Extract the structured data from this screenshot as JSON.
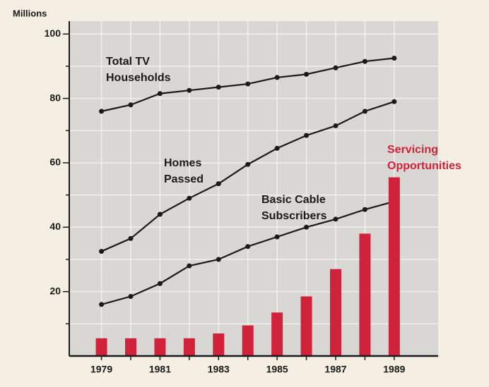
{
  "chart_data": {
    "type": "line-bar",
    "y_axis_label": "Millions",
    "x": [
      1979,
      1980,
      1981,
      1982,
      1983,
      1984,
      1985,
      1986,
      1987,
      1988,
      1989
    ],
    "xlim": [
      1977.9,
      1990.5
    ],
    "xticks": [
      1979,
      1981,
      1983,
      1985,
      1987,
      1989
    ],
    "ylim": [
      0,
      104
    ],
    "yticks": [
      20,
      40,
      60,
      80,
      100
    ],
    "minor_yticks": [
      10,
      30,
      50,
      70,
      90
    ],
    "grid": true,
    "series": [
      {
        "name": [
          "Total TV",
          "Households"
        ],
        "kind": "line",
        "color": "#1a1a1a",
        "values": [
          76,
          78,
          81.5,
          82.5,
          83.5,
          84.5,
          86.5,
          87.5,
          89.5,
          91.5,
          92.5
        ]
      },
      {
        "name": [
          "Homes",
          "Passed"
        ],
        "kind": "line",
        "color": "#1a1a1a",
        "values": [
          32.5,
          36.5,
          44,
          49,
          53.5,
          59.5,
          64.5,
          68.5,
          71.5,
          76,
          79
        ]
      },
      {
        "name": [
          "Basic Cable",
          "Subscribers"
        ],
        "kind": "line",
        "color": "#1a1a1a",
        "values": [
          16,
          18.5,
          22.5,
          28,
          30,
          34,
          37,
          40,
          42.5,
          45.5,
          48
        ]
      },
      {
        "name": [
          "Servicing",
          "Opportunities"
        ],
        "kind": "bar",
        "color": "#d0223a",
        "values": [
          5.5,
          5.5,
          5.5,
          5.5,
          7,
          9.5,
          13.5,
          18.5,
          27,
          38,
          55.5
        ]
      }
    ]
  }
}
